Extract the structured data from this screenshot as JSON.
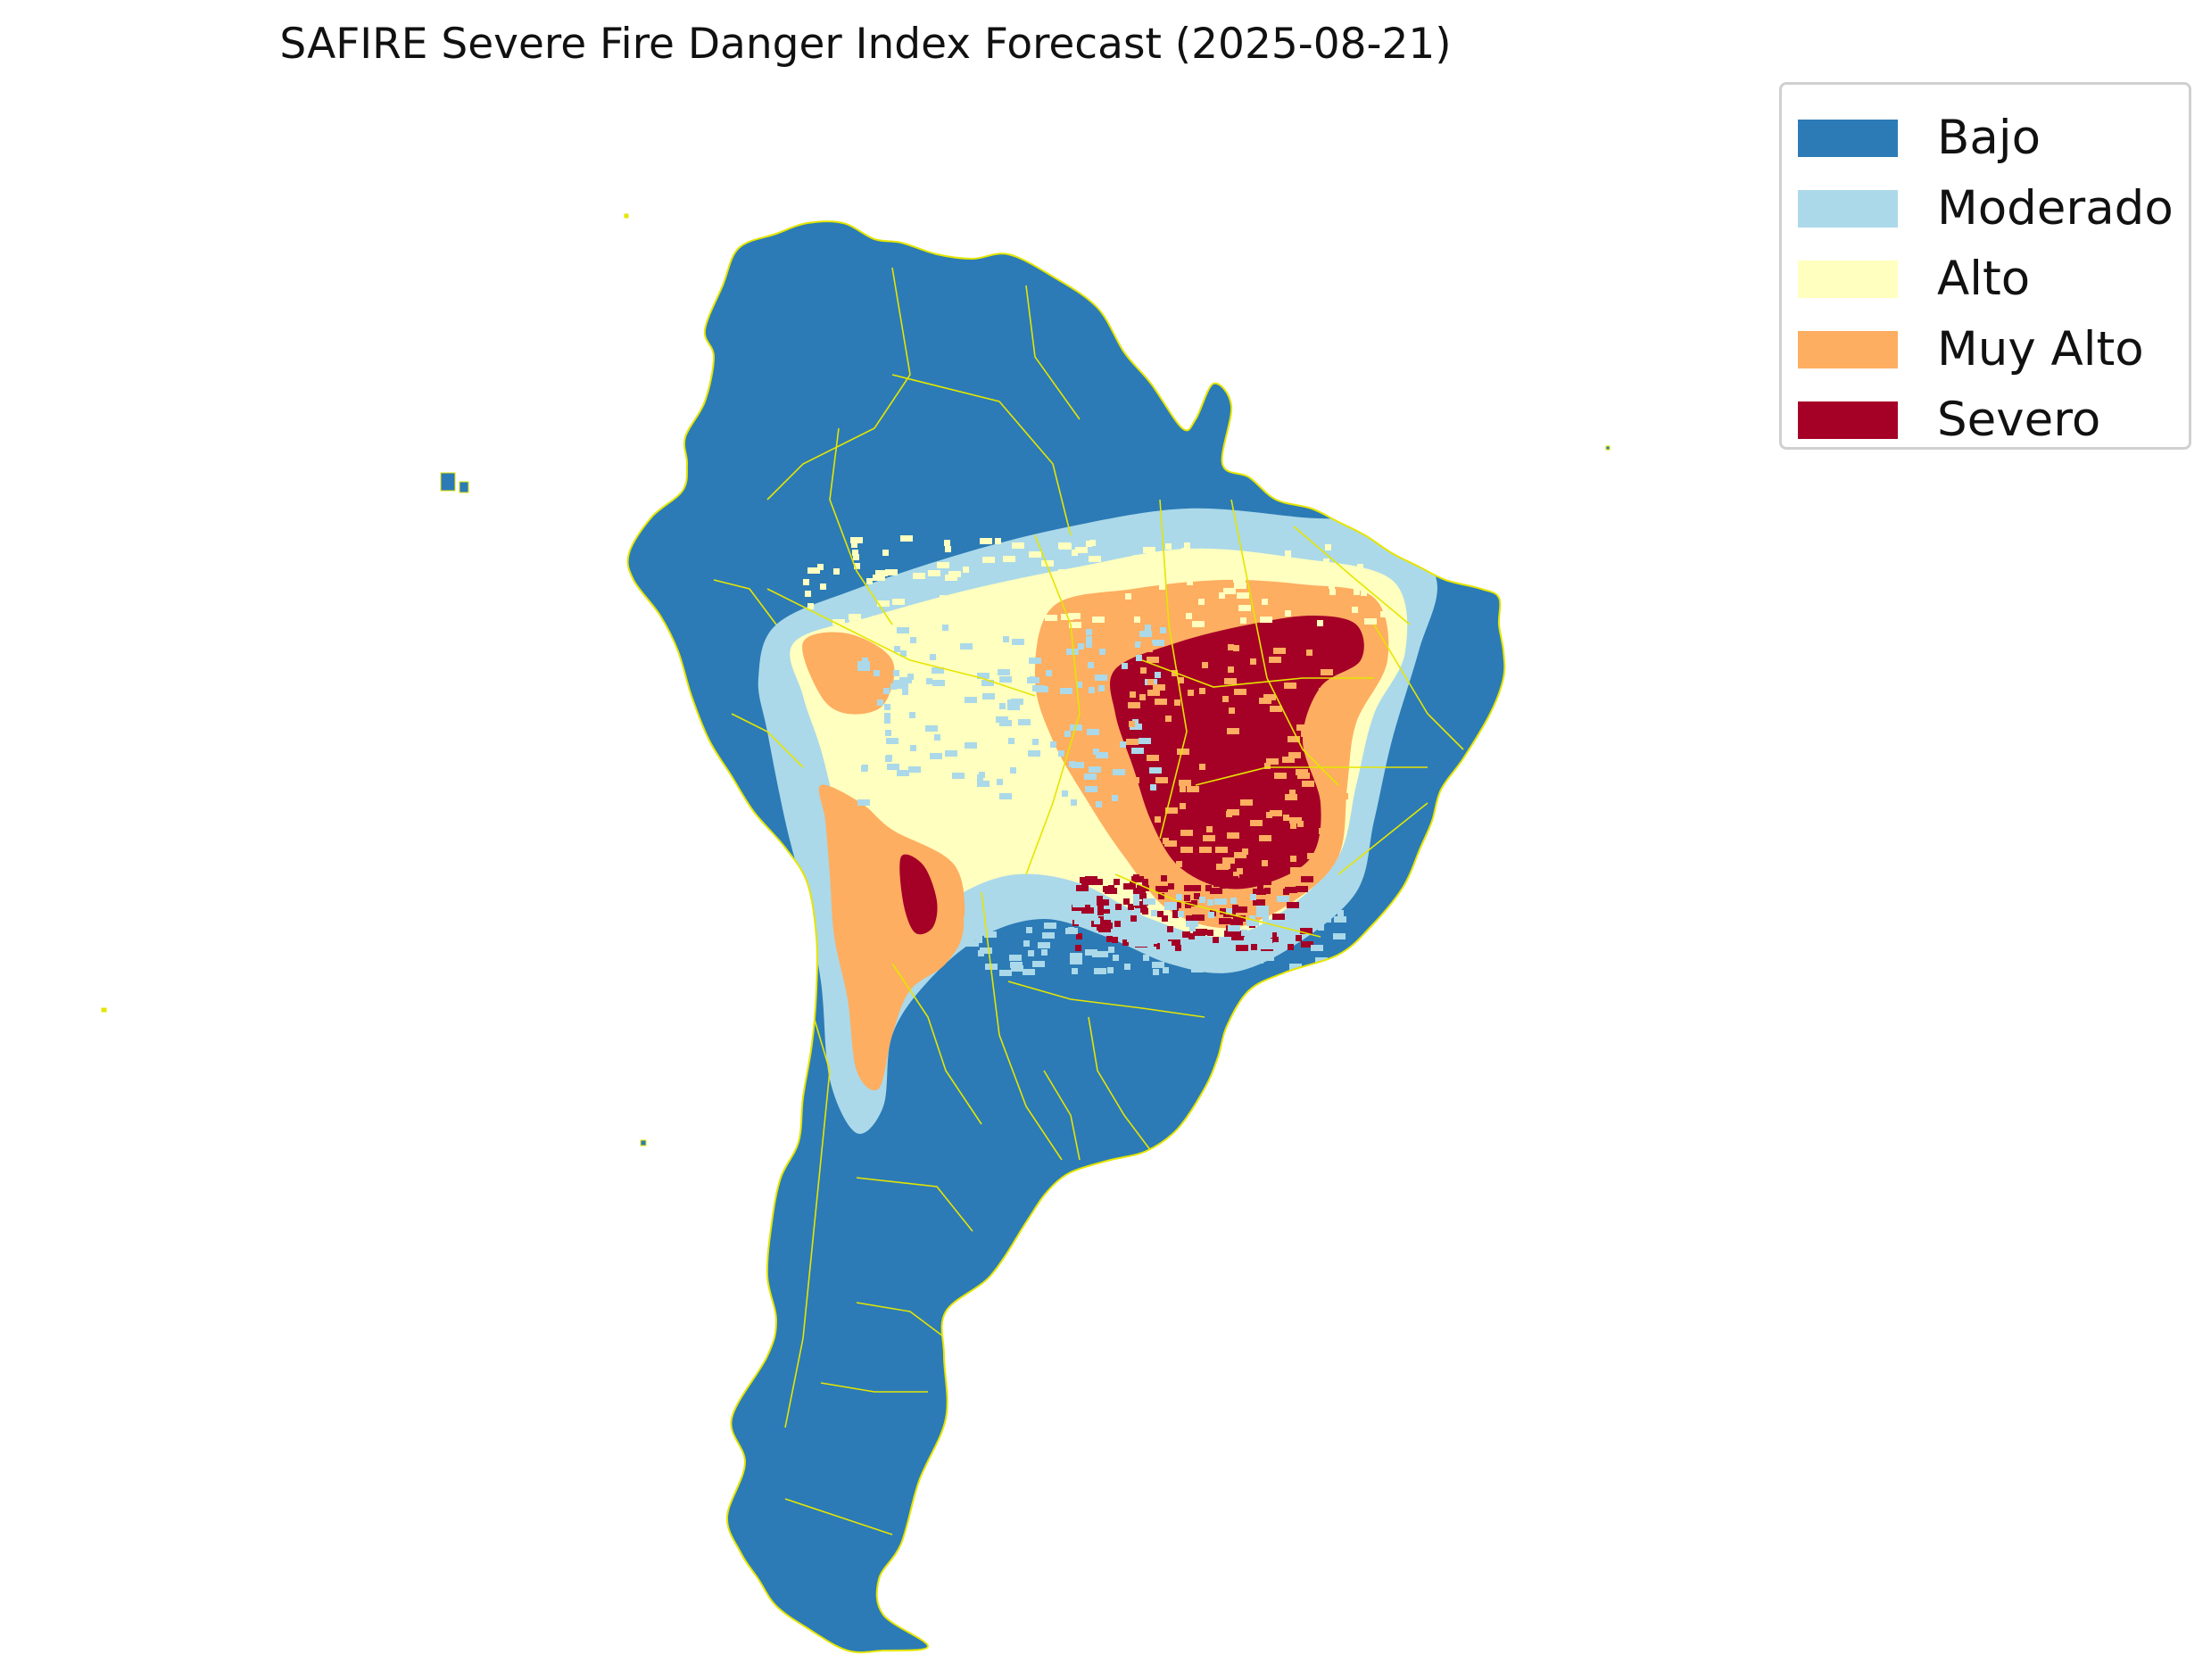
{
  "title": "SAFIRE Severe Fire Danger Index Forecast (2025-08-21)",
  "legend": {
    "items": [
      {
        "label": "Bajo",
        "color": "#2c7bb6"
      },
      {
        "label": "Moderado",
        "color": "#abd9e9"
      },
      {
        "label": "Alto",
        "color": "#ffffbf"
      },
      {
        "label": "Muy Alto",
        "color": "#fdae61"
      },
      {
        "label": "Severo",
        "color": "#a50026"
      }
    ]
  },
  "map": {
    "region": "South America",
    "border_color": "#e5e500",
    "background": "#ffffff"
  }
}
